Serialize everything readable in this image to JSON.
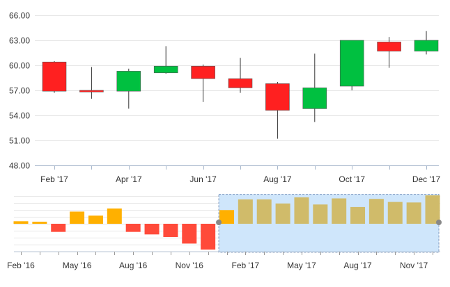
{
  "chart_data": [
    {
      "type": "candlestick",
      "ylim": [
        48,
        66
      ],
      "yticks": [
        "48.00",
        "51.00",
        "54.00",
        "57.00",
        "60.00",
        "63.00",
        "66.00"
      ],
      "x_tick_labels": [
        "Feb '17",
        "Apr '17",
        "Jun '17",
        "Aug '17",
        "Oct '17",
        "Dec '17"
      ],
      "up_color": "#00c040",
      "down_color": "#ff2020",
      "candles": [
        {
          "date": "2017-02",
          "open": 60.4,
          "high": 60.5,
          "low": 56.7,
          "close": 56.9
        },
        {
          "date": "2017-03",
          "open": 57.0,
          "high": 59.8,
          "low": 56.0,
          "close": 56.8
        },
        {
          "date": "2017-04",
          "open": 56.9,
          "high": 59.6,
          "low": 54.8,
          "close": 59.3
        },
        {
          "date": "2017-05",
          "open": 59.1,
          "high": 62.3,
          "low": 59.0,
          "close": 59.9
        },
        {
          "date": "2017-06",
          "open": 59.9,
          "high": 60.1,
          "low": 55.6,
          "close": 58.4
        },
        {
          "date": "2017-07",
          "open": 58.4,
          "high": 60.9,
          "low": 56.7,
          "close": 57.3
        },
        {
          "date": "2017-08",
          "open": 57.8,
          "high": 58.0,
          "low": 51.2,
          "close": 54.6
        },
        {
          "date": "2017-09",
          "open": 54.8,
          "high": 61.4,
          "low": 53.2,
          "close": 57.3
        },
        {
          "date": "2017-10",
          "open": 57.5,
          "high": 63.0,
          "low": 57.0,
          "close": 63.0
        },
        {
          "date": "2017-11",
          "open": 62.8,
          "high": 63.4,
          "low": 59.7,
          "close": 61.7
        },
        {
          "date": "2017-12",
          "open": 61.7,
          "high": 64.1,
          "low": 61.3,
          "close": 63.0
        }
      ]
    },
    {
      "type": "bar",
      "role": "navigator",
      "x_tick_labels": [
        "Feb '16",
        "May '16",
        "Aug '16",
        "Nov '16",
        "Feb '17",
        "May '17",
        "Aug '17",
        "Nov '17"
      ],
      "categories": [
        "2016-02",
        "2016-03",
        "2016-04",
        "2016-05",
        "2016-06",
        "2016-07",
        "2016-08",
        "2016-09",
        "2016-10",
        "2016-11",
        "2016-12",
        "2017-01",
        "2017-02",
        "2017-03",
        "2017-04",
        "2017-05",
        "2017-06",
        "2017-07",
        "2017-08",
        "2017-09",
        "2017-10",
        "2017-11",
        "2017-12"
      ],
      "values": [
        0.5,
        0.4,
        -1.6,
        2.4,
        1.6,
        3.0,
        -1.6,
        -2.1,
        -2.6,
        -3.9,
        -5.1,
        2.7,
        4.8,
        4.8,
        4.0,
        5.2,
        3.8,
        5.0,
        3.3,
        4.9,
        4.3,
        4.2,
        5.6
      ],
      "positive_color": "#ffb000",
      "negative_color": "#ff4a3a",
      "selected_color": "#d0bb6a",
      "selection": {
        "from": "2017-01",
        "to": "2017-12"
      },
      "selection_fill": "#cfe6fb",
      "selection_border": "#7f98bd"
    }
  ]
}
